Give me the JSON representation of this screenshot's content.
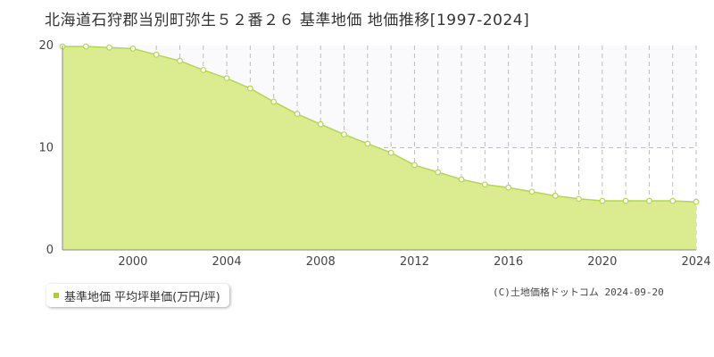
{
  "title": "北海道石狩郡当別町弥生５２番２６ 基準地価 地価推移[1997-2024]",
  "legend": {
    "label": "基準地価 平均坪単価(万円/坪)"
  },
  "copyright": "(C)土地価格ドットコム 2024-09-20",
  "colors": {
    "fill": "#dbeb8f",
    "line": "#b3d84a",
    "marker_fill": "#ffffff",
    "marker_stroke": "#b3d84a",
    "legend_swatch": "#a8cf38"
  },
  "chart_data": {
    "type": "area",
    "x": [
      1997,
      1998,
      1999,
      2000,
      2001,
      2002,
      2003,
      2004,
      2005,
      2006,
      2007,
      2008,
      2009,
      2010,
      2011,
      2012,
      2013,
      2014,
      2015,
      2016,
      2017,
      2018,
      2019,
      2020,
      2021,
      2022,
      2023,
      2024
    ],
    "series": [
      {
        "values": [
          19.9,
          19.9,
          19.8,
          19.7,
          19.1,
          18.5,
          17.6,
          16.8,
          15.8,
          14.5,
          13.3,
          12.3,
          11.3,
          10.4,
          9.5,
          8.3,
          7.6,
          6.9,
          6.4,
          6.1,
          5.7,
          5.3,
          5.0,
          4.8,
          4.8,
          4.8,
          4.8,
          4.7
        ]
      }
    ],
    "xlim": [
      1997,
      2024
    ],
    "ylim": [
      0,
      20
    ],
    "x_ticks": [
      "2000",
      "2004",
      "2008",
      "2012",
      "2016",
      "2020",
      "2024"
    ],
    "y_ticks": [
      "0",
      "10",
      "20"
    ],
    "grid": true
  }
}
